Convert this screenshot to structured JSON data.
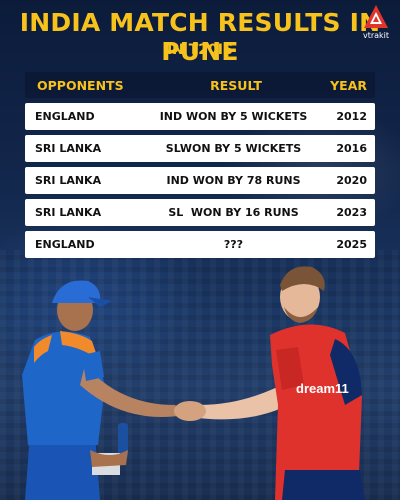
{
  "header": {
    "title": "INDIA MATCH RESULTS IN PUNE",
    "subtitle": "IN T20IS"
  },
  "brand": {
    "name": "vtrakit",
    "accent": "#e1352b"
  },
  "colors": {
    "title": "#f7c21c",
    "row_bg": "#ffffff",
    "india_jersey": "#1f66c9",
    "england_jersey": "#e0322d"
  },
  "table": {
    "columns": [
      "OPPONENTS",
      "RESULT",
      "YEAR"
    ],
    "rows": [
      {
        "opponent": "ENGLAND",
        "result": "IND WON BY 5 WICKETS",
        "year": "2012"
      },
      {
        "opponent": "SRI LANKA",
        "result": "SLWON BY 5 WICKETS",
        "year": "2016"
      },
      {
        "opponent": "SRI LANKA",
        "result": "IND WON BY 78 RUNS",
        "year": "2020"
      },
      {
        "opponent": "SRI LANKA",
        "result": "SL  WON BY 16 RUNS",
        "year": "2023"
      },
      {
        "opponent": "ENGLAND",
        "result": "???",
        "year": "2025"
      }
    ]
  },
  "photo": {
    "jersey_text": "dream11"
  }
}
